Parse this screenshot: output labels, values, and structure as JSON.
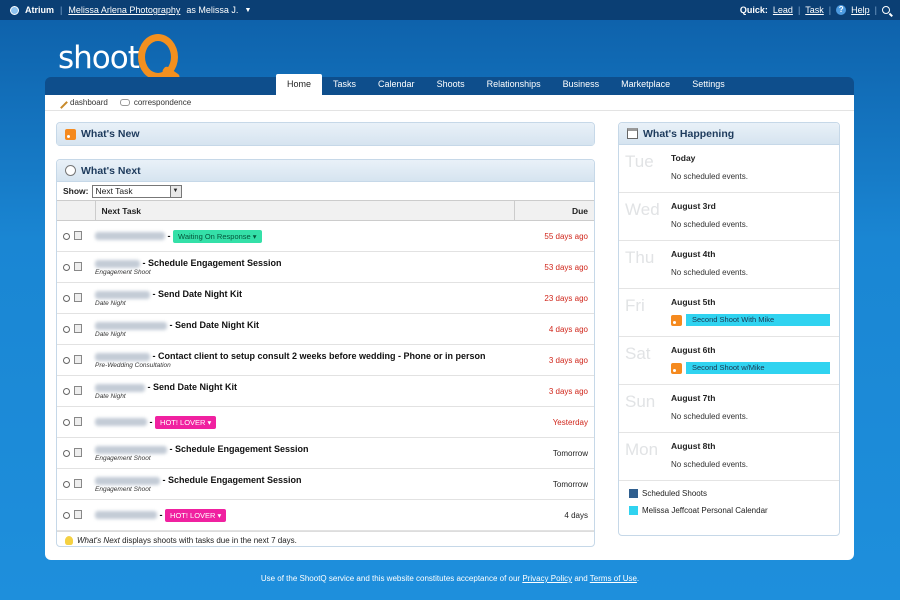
{
  "topbar": {
    "app_name": "Atrium",
    "studio_link": "Melissa Arlena Photography",
    "as_user": "as Melissa J.",
    "quick_label": "Quick:",
    "quick_lead": "Lead",
    "quick_task": "Task",
    "help": "Help"
  },
  "logo": {
    "text": "shoot"
  },
  "nav": {
    "tabs": [
      "Home",
      "Tasks",
      "Calendar",
      "Shoots",
      "Relationships",
      "Business",
      "Marketplace",
      "Settings"
    ],
    "active": "Home"
  },
  "breadcrumbs": {
    "dashboard": "dashboard",
    "correspondence": "correspondence"
  },
  "whats_new": {
    "title": "What's New"
  },
  "whats_next": {
    "title": "What's Next",
    "show_label": "Show:",
    "show_value": "Next Task",
    "col_task": "Next Task",
    "col_due": "Due",
    "rows": [
      {
        "task": "",
        "sub": "",
        "tag": "Waiting On Response ▾",
        "tag_color": "#34e0a8",
        "due": "55 days ago",
        "overdue": true
      },
      {
        "task": "- Schedule Engagement Session",
        "sub": "Engagement Shoot",
        "tag": "",
        "due": "53 days ago",
        "overdue": true
      },
      {
        "task": "- Send Date Night Kit",
        "sub": "Date Night",
        "tag": "",
        "due": "23 days ago",
        "overdue": true
      },
      {
        "task": "- Send Date Night Kit",
        "sub": "Date Night",
        "tag": "",
        "due": "4 days ago",
        "overdue": true
      },
      {
        "task": "- Contact client to setup consult 2 weeks before wedding - Phone or in person",
        "sub": "Pre-Wedding Consultation",
        "tag": "",
        "due": "3 days ago",
        "overdue": true
      },
      {
        "task": "- Send Date Night Kit",
        "sub": "Date Night",
        "tag": "",
        "due": "3 days ago",
        "overdue": true
      },
      {
        "task": "",
        "sub": "",
        "tag": "HOT! LOVER ▾",
        "tag_color": "#f021a0",
        "due": "Yesterday",
        "overdue": true
      },
      {
        "task": "- Schedule Engagement Session",
        "sub": "Engagement Shoot",
        "tag": "",
        "due": "Tomorrow",
        "overdue": false
      },
      {
        "task": "- Schedule Engagement Session",
        "sub": "Engagement Shoot",
        "tag": "",
        "due": "Tomorrow",
        "overdue": false
      },
      {
        "task": "",
        "sub": "",
        "tag": "HOT! LOVER ▾",
        "tag_color": "#f021a0",
        "due": "4 days",
        "overdue": false
      }
    ],
    "footer_em": "What's Next",
    "footer_rest": " displays shoots with tasks due in the next 7 days."
  },
  "whats_happening": {
    "title": "What's Happening",
    "days": [
      {
        "abbr": "Tue",
        "title": "Today",
        "none": "No scheduled events.",
        "event": ""
      },
      {
        "abbr": "Wed",
        "title": "August 3rd",
        "none": "No scheduled events.",
        "event": ""
      },
      {
        "abbr": "Thu",
        "title": "August 4th",
        "none": "No scheduled events.",
        "event": ""
      },
      {
        "abbr": "Fri",
        "title": "August 5th",
        "none": "",
        "event": "Second Shoot With Mike"
      },
      {
        "abbr": "Sat",
        "title": "August 6th",
        "none": "",
        "event": "Second Shoot w/Mike"
      },
      {
        "abbr": "Sun",
        "title": "August 7th",
        "none": "No scheduled events.",
        "event": ""
      },
      {
        "abbr": "Mon",
        "title": "August 8th",
        "none": "No scheduled events.",
        "event": ""
      }
    ],
    "legend": [
      {
        "label": "Scheduled Shoots",
        "color": "#2f5f8f"
      },
      {
        "label": "Melissa Jeffcoat Personal Calendar",
        "color": "#30d3f0"
      }
    ]
  },
  "footer": {
    "pre": "Use of the ShootQ service and this website constitutes acceptance of our",
    "privacy": "Privacy Policy",
    "and": "and",
    "terms": "Terms of Use",
    "end": "."
  }
}
